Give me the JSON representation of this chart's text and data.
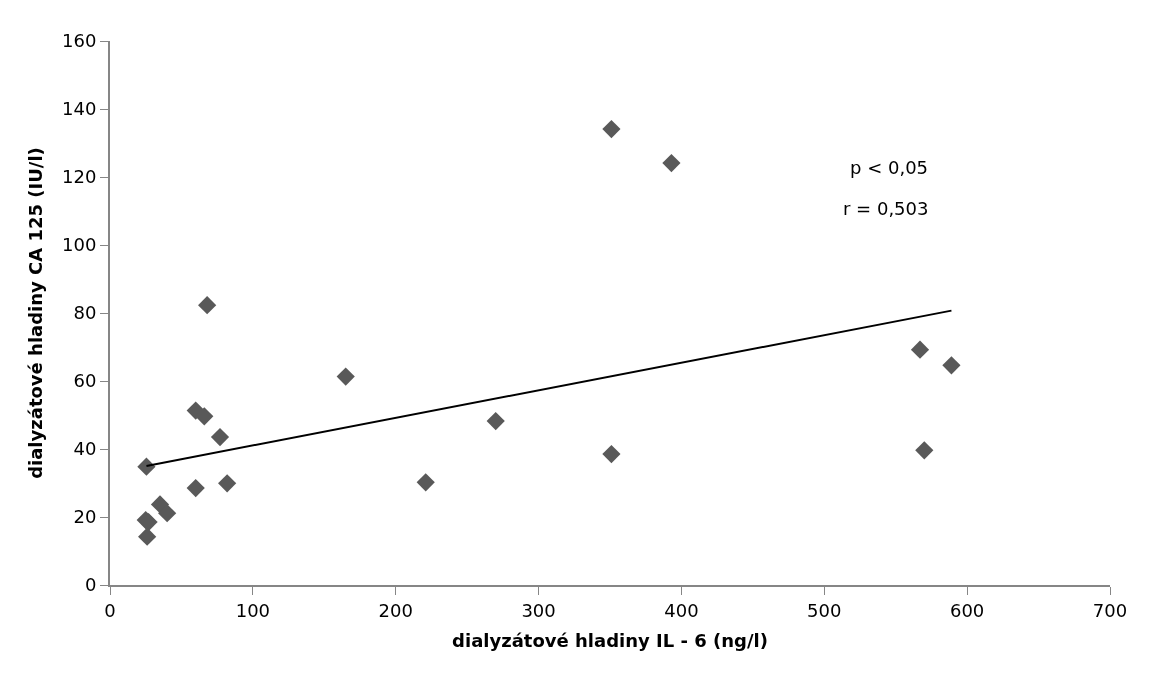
{
  "chart_data": {
    "type": "scatter",
    "xlabel": "dialyzátové hladiny IL - 6 (ng/l)",
    "ylabel": "dialyzátové hladiny CA 125 (IU/l)",
    "series": [
      {
        "color": "#595959",
        "marker": "diamond",
        "x": [
          25.5,
          25,
          27,
          26,
          35,
          40,
          60,
          66,
          68,
          77,
          60,
          82,
          165,
          221,
          270,
          351,
          351,
          393,
          567,
          589,
          570
        ],
        "values": [
          34.8,
          19.1,
          18.5,
          14.2,
          23.7,
          21.1,
          51.3,
          49.6,
          82.3,
          43.5,
          28.5,
          29.9,
          61.3,
          30.2,
          48.2,
          134.1,
          38.5,
          124.1,
          69.2,
          64.6,
          39.6
        ]
      },
      {
        "type": "line",
        "color": "#000000",
        "marker": "none",
        "line_style": "solid",
        "x": [
          25.5,
          589
        ],
        "values": [
          35,
          80.7
        ]
      }
    ],
    "annotations": [
      "p < 0,05",
      "r = 0,503"
    ],
    "xlim": [
      0,
      700
    ],
    "xticks": [
      0,
      100,
      200,
      300,
      400,
      500,
      600,
      700
    ],
    "ylim": [
      0,
      160
    ],
    "yticks": [
      0,
      20,
      40,
      60,
      80,
      100,
      120,
      140,
      160
    ]
  }
}
